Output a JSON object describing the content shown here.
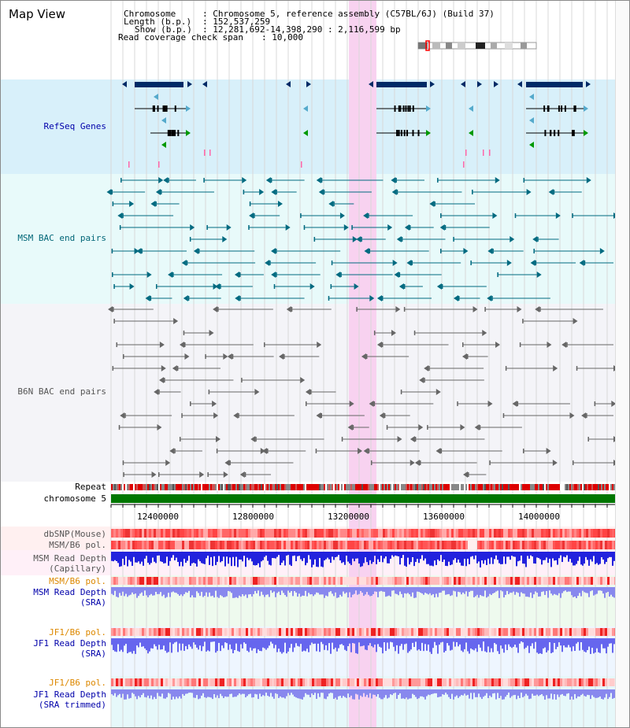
{
  "page": {
    "title": "Map View"
  },
  "info": {
    "chromosome_label": "Chromosome",
    "chromosome_value": ": Chromosome 5, reference assembly (C57BL/6J) (Build 37)",
    "length_label": "Length (b.p.)",
    "length_value": ": 152,537,259",
    "show_label": "Show (b.p.)",
    "show_value": ": 12,281,692-14,398,290 : 2,116,599 bp",
    "coverage_label": "Read coverage check span",
    "coverage_value": ": 10,000"
  },
  "tracks": {
    "refseq": "RefSeq Genes",
    "msm_bac": "MSM BAC end pairs",
    "b6n_bac": "B6N BAC end pairs",
    "repeat": "Repeat",
    "chromosome": "chromosome 5",
    "dbsnp": "dbSNP(Mouse)",
    "msm_b6_pol_1": "MSM/B6 pol.",
    "msm_rd_cap_1": "MSM Read Depth",
    "msm_rd_cap_2": "(Capillary)",
    "msm_b6_pol_2": "MSM/B6 pol.",
    "msm_rd_sra_1": "MSM Read Depth",
    "msm_rd_sra_2": "(SRA)",
    "jf1_b6_pol_1": "JF1/B6 pol.",
    "jf1_rd_sra_1": "JF1 Read Depth",
    "jf1_rd_sra_2": "(SRA)",
    "jf1_b6_pol_2": "JF1/B6 pol.",
    "jf1_rd_trim_1": "JF1 Read Depth",
    "jf1_rd_trim_2": "(SRA trimmed)"
  },
  "axis": {
    "ticks": [
      "12400000",
      "12800000",
      "13200000",
      "13600000",
      "14000000"
    ]
  },
  "colors": {
    "refseq_label": "#0000aa",
    "msm_label": "#006677",
    "b6n_label": "#555555",
    "pol_label": "#dd8800",
    "depth_label": "#0000aa",
    "gene": "#002a66",
    "highlight": "#f8d2f0",
    "chromosome_bar": "#007700"
  }
}
